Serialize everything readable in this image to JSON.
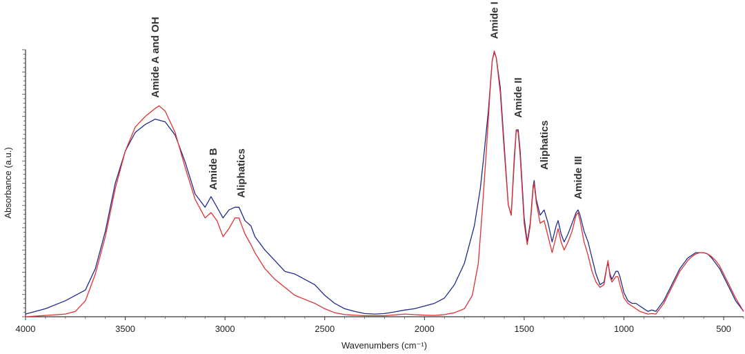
{
  "chart_data": {
    "type": "line",
    "xlabel": "Wavenumbers (cm⁻¹)",
    "ylabel": "Absorbance (a.u.)",
    "xlim": [
      4000,
      400
    ],
    "ylim": [
      0,
      1.0
    ],
    "x_axis_reversed": true,
    "y_tick_labels_shown": false,
    "grid": false,
    "legend": "none",
    "x_ticks": [
      4000,
      3500,
      3000,
      2500,
      2000,
      1500,
      1000,
      500
    ],
    "x_tick_labels": [
      "4000",
      "3500",
      "3000",
      "2500",
      "2000",
      "1500",
      "1000",
      "500"
    ],
    "series": [
      {
        "color": "#1f2a8c",
        "points": [
          [
            4000,
            0.01
          ],
          [
            3900,
            0.03
          ],
          [
            3800,
            0.06
          ],
          [
            3700,
            0.1
          ],
          [
            3650,
            0.18
          ],
          [
            3600,
            0.32
          ],
          [
            3550,
            0.5
          ],
          [
            3500,
            0.62
          ],
          [
            3450,
            0.69
          ],
          [
            3400,
            0.72
          ],
          [
            3350,
            0.74
          ],
          [
            3300,
            0.73
          ],
          [
            3250,
            0.68
          ],
          [
            3200,
            0.58
          ],
          [
            3150,
            0.46
          ],
          [
            3100,
            0.41
          ],
          [
            3070,
            0.45
          ],
          [
            3040,
            0.41
          ],
          [
            3010,
            0.37
          ],
          [
            2980,
            0.4
          ],
          [
            2950,
            0.41
          ],
          [
            2930,
            0.41
          ],
          [
            2900,
            0.36
          ],
          [
            2870,
            0.34
          ],
          [
            2850,
            0.3
          ],
          [
            2800,
            0.25
          ],
          [
            2750,
            0.21
          ],
          [
            2700,
            0.17
          ],
          [
            2650,
            0.16
          ],
          [
            2600,
            0.14
          ],
          [
            2550,
            0.12
          ],
          [
            2500,
            0.08
          ],
          [
            2450,
            0.05
          ],
          [
            2400,
            0.03
          ],
          [
            2350,
            0.02
          ],
          [
            2300,
            0.012
          ],
          [
            2250,
            0.01
          ],
          [
            2200,
            0.012
          ],
          [
            2150,
            0.018
          ],
          [
            2100,
            0.025
          ],
          [
            2050,
            0.03
          ],
          [
            2000,
            0.04
          ],
          [
            1950,
            0.05
          ],
          [
            1900,
            0.07
          ],
          [
            1850,
            0.12
          ],
          [
            1800,
            0.2
          ],
          [
            1750,
            0.34
          ],
          [
            1720,
            0.48
          ],
          [
            1700,
            0.62
          ],
          [
            1680,
            0.77
          ],
          [
            1660,
            0.96
          ],
          [
            1650,
            0.99
          ],
          [
            1640,
            0.97
          ],
          [
            1620,
            0.86
          ],
          [
            1600,
            0.64
          ],
          [
            1580,
            0.42
          ],
          [
            1565,
            0.38
          ],
          [
            1550,
            0.58
          ],
          [
            1540,
            0.7
          ],
          [
            1530,
            0.7
          ],
          [
            1520,
            0.62
          ],
          [
            1500,
            0.37
          ],
          [
            1485,
            0.28
          ],
          [
            1470,
            0.35
          ],
          [
            1455,
            0.49
          ],
          [
            1450,
            0.51
          ],
          [
            1440,
            0.44
          ],
          [
            1420,
            0.38
          ],
          [
            1400,
            0.4
          ],
          [
            1380,
            0.35
          ],
          [
            1360,
            0.28
          ],
          [
            1340,
            0.34
          ],
          [
            1330,
            0.36
          ],
          [
            1315,
            0.31
          ],
          [
            1300,
            0.28
          ],
          [
            1280,
            0.31
          ],
          [
            1260,
            0.35
          ],
          [
            1240,
            0.39
          ],
          [
            1230,
            0.4
          ],
          [
            1220,
            0.38
          ],
          [
            1200,
            0.32
          ],
          [
            1180,
            0.28
          ],
          [
            1160,
            0.22
          ],
          [
            1140,
            0.16
          ],
          [
            1120,
            0.12
          ],
          [
            1100,
            0.13
          ],
          [
            1085,
            0.19
          ],
          [
            1080,
            0.2
          ],
          [
            1070,
            0.16
          ],
          [
            1060,
            0.14
          ],
          [
            1040,
            0.17
          ],
          [
            1030,
            0.17
          ],
          [
            1020,
            0.15
          ],
          [
            1000,
            0.09
          ],
          [
            980,
            0.06
          ],
          [
            960,
            0.05
          ],
          [
            940,
            0.05
          ],
          [
            920,
            0.04
          ],
          [
            900,
            0.03
          ],
          [
            880,
            0.02
          ],
          [
            860,
            0.025
          ],
          [
            840,
            0.02
          ],
          [
            820,
            0.04
          ],
          [
            800,
            0.06
          ],
          [
            780,
            0.09
          ],
          [
            760,
            0.12
          ],
          [
            740,
            0.15
          ],
          [
            720,
            0.18
          ],
          [
            700,
            0.2
          ],
          [
            680,
            0.22
          ],
          [
            660,
            0.23
          ],
          [
            640,
            0.24
          ],
          [
            620,
            0.24
          ],
          [
            600,
            0.24
          ],
          [
            580,
            0.235
          ],
          [
            560,
            0.22
          ],
          [
            540,
            0.2
          ],
          [
            520,
            0.18
          ],
          [
            500,
            0.15
          ],
          [
            480,
            0.12
          ],
          [
            460,
            0.09
          ],
          [
            440,
            0.06
          ],
          [
            420,
            0.04
          ],
          [
            400,
            0.02
          ]
        ]
      },
      {
        "color": "#e03030",
        "points": [
          [
            4000,
            0.0
          ],
          [
            3900,
            0.005
          ],
          [
            3800,
            0.01
          ],
          [
            3750,
            0.02
          ],
          [
            3700,
            0.06
          ],
          [
            3650,
            0.16
          ],
          [
            3600,
            0.3
          ],
          [
            3550,
            0.48
          ],
          [
            3500,
            0.62
          ],
          [
            3450,
            0.71
          ],
          [
            3400,
            0.75
          ],
          [
            3350,
            0.78
          ],
          [
            3330,
            0.79
          ],
          [
            3300,
            0.77
          ],
          [
            3250,
            0.69
          ],
          [
            3200,
            0.56
          ],
          [
            3150,
            0.44
          ],
          [
            3100,
            0.37
          ],
          [
            3070,
            0.39
          ],
          [
            3040,
            0.36
          ],
          [
            3010,
            0.3
          ],
          [
            2980,
            0.33
          ],
          [
            2950,
            0.37
          ],
          [
            2930,
            0.37
          ],
          [
            2900,
            0.31
          ],
          [
            2870,
            0.27
          ],
          [
            2850,
            0.24
          ],
          [
            2800,
            0.18
          ],
          [
            2750,
            0.14
          ],
          [
            2700,
            0.11
          ],
          [
            2650,
            0.08
          ],
          [
            2600,
            0.065
          ],
          [
            2550,
            0.05
          ],
          [
            2500,
            0.03
          ],
          [
            2450,
            0.015
          ],
          [
            2400,
            0.008
          ],
          [
            2300,
            0.004
          ],
          [
            2200,
            0.004
          ],
          [
            2100,
            0.01
          ],
          [
            2050,
            0.008
          ],
          [
            2000,
            0.006
          ],
          [
            1950,
            0.005
          ],
          [
            1900,
            0.008
          ],
          [
            1850,
            0.015
          ],
          [
            1800,
            0.03
          ],
          [
            1760,
            0.08
          ],
          [
            1730,
            0.2
          ],
          [
            1710,
            0.4
          ],
          [
            1690,
            0.62
          ],
          [
            1670,
            0.86
          ],
          [
            1660,
            0.96
          ],
          [
            1650,
            0.995
          ],
          [
            1640,
            0.97
          ],
          [
            1620,
            0.84
          ],
          [
            1600,
            0.62
          ],
          [
            1580,
            0.42
          ],
          [
            1565,
            0.38
          ],
          [
            1550,
            0.6
          ],
          [
            1540,
            0.7
          ],
          [
            1530,
            0.69
          ],
          [
            1520,
            0.6
          ],
          [
            1500,
            0.35
          ],
          [
            1485,
            0.27
          ],
          [
            1470,
            0.34
          ],
          [
            1455,
            0.48
          ],
          [
            1450,
            0.5
          ],
          [
            1440,
            0.43
          ],
          [
            1420,
            0.35
          ],
          [
            1400,
            0.36
          ],
          [
            1380,
            0.3
          ],
          [
            1360,
            0.24
          ],
          [
            1340,
            0.3
          ],
          [
            1330,
            0.33
          ],
          [
            1315,
            0.28
          ],
          [
            1300,
            0.25
          ],
          [
            1280,
            0.28
          ],
          [
            1260,
            0.32
          ],
          [
            1240,
            0.38
          ],
          [
            1230,
            0.39
          ],
          [
            1220,
            0.36
          ],
          [
            1200,
            0.28
          ],
          [
            1180,
            0.23
          ],
          [
            1160,
            0.17
          ],
          [
            1140,
            0.13
          ],
          [
            1120,
            0.11
          ],
          [
            1100,
            0.12
          ],
          [
            1085,
            0.19
          ],
          [
            1080,
            0.21
          ],
          [
            1070,
            0.15
          ],
          [
            1060,
            0.13
          ],
          [
            1040,
            0.15
          ],
          [
            1030,
            0.15
          ],
          [
            1020,
            0.12
          ],
          [
            1000,
            0.07
          ],
          [
            980,
            0.05
          ],
          [
            960,
            0.04
          ],
          [
            940,
            0.03
          ],
          [
            920,
            0.02
          ],
          [
            900,
            0.015
          ],
          [
            880,
            0.01
          ],
          [
            860,
            0.012
          ],
          [
            840,
            0.01
          ],
          [
            820,
            0.03
          ],
          [
            800,
            0.05
          ],
          [
            780,
            0.08
          ],
          [
            760,
            0.11
          ],
          [
            740,
            0.14
          ],
          [
            720,
            0.17
          ],
          [
            700,
            0.19
          ],
          [
            680,
            0.21
          ],
          [
            660,
            0.225
          ],
          [
            640,
            0.235
          ],
          [
            620,
            0.24
          ],
          [
            600,
            0.24
          ],
          [
            580,
            0.235
          ],
          [
            560,
            0.225
          ],
          [
            540,
            0.21
          ],
          [
            520,
            0.19
          ],
          [
            500,
            0.16
          ],
          [
            480,
            0.13
          ],
          [
            460,
            0.1
          ],
          [
            440,
            0.07
          ],
          [
            420,
            0.045
          ],
          [
            400,
            0.02
          ]
        ]
      }
    ],
    "annotations": [
      {
        "text": "Amide A and OH",
        "x": 3350,
        "y": 0.82
      },
      {
        "text": "Amide B",
        "x": 3060,
        "y": 0.475
      },
      {
        "text": "Aliphatics",
        "x": 2920,
        "y": 0.445
      },
      {
        "text": "Amide I",
        "x": 1650,
        "y": 1.04
      },
      {
        "text": "Amide II",
        "x": 1530,
        "y": 0.745
      },
      {
        "text": "Aliphatics",
        "x": 1400,
        "y": 0.55
      },
      {
        "text": "Amide III",
        "x": 1230,
        "y": 0.44
      }
    ]
  }
}
